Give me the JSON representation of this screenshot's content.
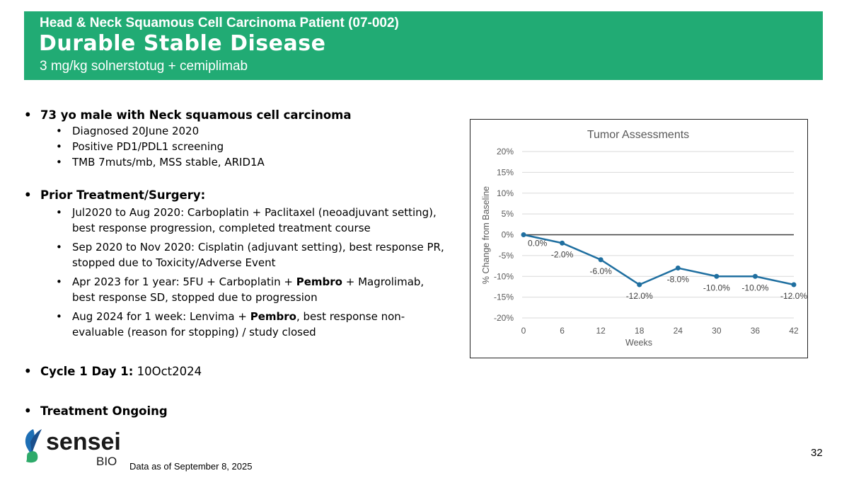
{
  "header": {
    "subtitle": "Head & Neck Squamous Cell Carcinoma Patient (07-002)",
    "title": "Durable Stable Disease",
    "drug": "3 mg/kg solnerstotug + cemiplimab",
    "color": "#21ab74"
  },
  "content": {
    "patient": {
      "label": "73 yo male with Neck squamous cell carcinoma",
      "items": [
        "Diagnosed 20June 2020",
        "Positive PD1/PDL1 screening",
        "TMB 7muts/mb, MSS stable, ARID1A"
      ]
    },
    "prior": {
      "label": "Prior Treatment/Surgery:",
      "items": [
        {
          "pre": "Jul2020 to Aug 2020: Carboplatin + Paclitaxel (neoadjuvant setting), best response progression, completed treatment course",
          "bold": "",
          "post": ""
        },
        {
          "pre": "Sep 2020 to Nov 2020: Cisplatin (adjuvant setting), best response PR, stopped due to Toxicity/Adverse Event",
          "bold": "",
          "post": ""
        },
        {
          "pre": "Apr 2023 for 1 year: 5FU + Carboplatin + ",
          "bold": "Pembro",
          "post": " + Magrolimab, best response SD, stopped due to progression"
        },
        {
          "pre": "Aug 2024 for 1 week: Lenvima + ",
          "bold": "Pembro",
          "post": ", best response non-evaluable (reason for stopping) / study closed"
        }
      ]
    },
    "cycle": {
      "label": "Cycle 1 Day 1:",
      "value": " 10Oct2024"
    },
    "ongoing": "Treatment Ongoing"
  },
  "chart_data": {
    "type": "line",
    "title": "Tumor Assessments",
    "xlabel": "Weeks",
    "ylabel": "% Change from Baseline",
    "x": [
      0,
      6,
      12,
      18,
      24,
      30,
      36,
      42
    ],
    "series": [
      {
        "values": [
          0,
          -2,
          -6,
          -12,
          -8,
          -10,
          -10,
          -12
        ],
        "labels": [
          "0.0%",
          "-2.0%",
          "-6.0%",
          "-12.0%",
          "-8.0%",
          "-10.0%",
          "-10.0%",
          "-12.0%"
        ],
        "color": "#1f6fa0"
      }
    ],
    "ylim": [
      -20,
      20
    ],
    "yticks": [
      "20%",
      "15%",
      "10%",
      "5%",
      "0%",
      "-5%",
      "-10%",
      "-15%",
      "-20%"
    ],
    "xticks": [
      "0",
      "6",
      "12",
      "18",
      "24",
      "30",
      "36",
      "42"
    ],
    "grid": true
  },
  "footer": {
    "logo_text": "sensei",
    "logo_sub": "BIO",
    "as_of": "Data as of September 8, 2025",
    "page": "32"
  }
}
